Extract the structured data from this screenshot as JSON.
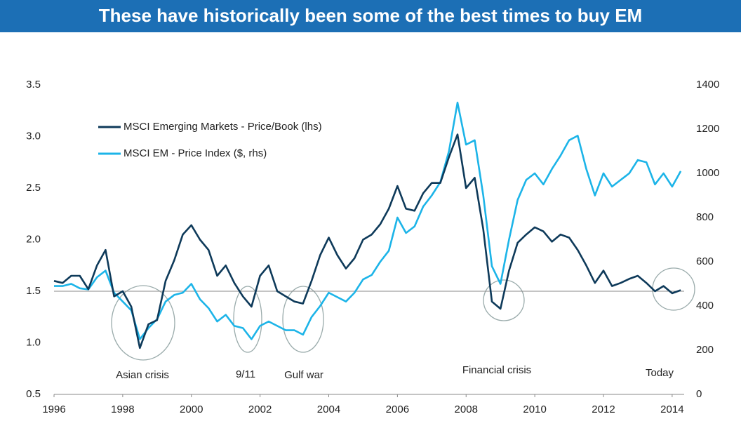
{
  "chart_data": {
    "type": "line",
    "title": "These have historically been some of the best times to buy EM",
    "x": [
      1996,
      1996.25,
      1996.5,
      1996.75,
      1997,
      1997.25,
      1997.5,
      1997.75,
      1998,
      1998.25,
      1998.5,
      1998.75,
      1999,
      1999.25,
      1999.5,
      1999.75,
      2000,
      2000.25,
      2000.5,
      2000.75,
      2001,
      2001.25,
      2001.5,
      2001.75,
      2002,
      2002.25,
      2002.5,
      2002.75,
      2003,
      2003.25,
      2003.5,
      2003.75,
      2004,
      2004.25,
      2004.5,
      2004.75,
      2005,
      2005.25,
      2005.5,
      2005.75,
      2006,
      2006.25,
      2006.5,
      2006.75,
      2007,
      2007.25,
      2007.5,
      2007.75,
      2008,
      2008.25,
      2008.5,
      2008.75,
      2009,
      2009.25,
      2009.5,
      2009.75,
      2010,
      2010.25,
      2010.5,
      2010.75,
      2011,
      2011.25,
      2011.5,
      2011.75,
      2012,
      2012.25,
      2012.5,
      2012.75,
      2013,
      2013.25,
      2013.5,
      2013.75,
      2014,
      2014.25
    ],
    "series": [
      {
        "name": "MSCI Emerging Markets - Price/Book (lhs)",
        "color": "#0e3a5a",
        "axis": "y",
        "values": [
          1.6,
          1.58,
          1.65,
          1.65,
          1.52,
          1.75,
          1.9,
          1.45,
          1.5,
          1.35,
          0.95,
          1.18,
          1.22,
          1.6,
          1.8,
          2.05,
          2.14,
          2.0,
          1.9,
          1.65,
          1.75,
          1.58,
          1.45,
          1.35,
          1.65,
          1.75,
          1.5,
          1.45,
          1.4,
          1.38,
          1.6,
          1.85,
          2.02,
          1.85,
          1.72,
          1.82,
          2.0,
          2.05,
          2.15,
          2.3,
          2.52,
          2.3,
          2.28,
          2.45,
          2.55,
          2.55,
          2.8,
          3.02,
          2.5,
          2.6,
          2.1,
          1.4,
          1.33,
          1.7,
          1.97,
          2.05,
          2.12,
          2.08,
          1.98,
          2.05,
          2.02,
          1.9,
          1.75,
          1.58,
          1.7,
          1.55,
          1.58,
          1.62,
          1.65,
          1.58,
          1.5,
          1.55,
          1.48,
          1.51
        ]
      },
      {
        "name": "MSCI EM - Price Index ($, rhs)",
        "color": "#1cb4e8",
        "axis": "y2",
        "values": [
          490,
          490,
          500,
          480,
          475,
          530,
          560,
          460,
          420,
          380,
          250,
          300,
          340,
          420,
          450,
          460,
          500,
          430,
          390,
          330,
          360,
          310,
          300,
          250,
          310,
          330,
          310,
          290,
          290,
          270,
          350,
          400,
          460,
          440,
          420,
          460,
          520,
          540,
          600,
          650,
          800,
          730,
          760,
          850,
          900,
          960,
          1100,
          1320,
          1130,
          1150,
          900,
          580,
          500,
          700,
          880,
          970,
          1000,
          950,
          1020,
          1080,
          1150,
          1170,
          1020,
          900,
          1000,
          940,
          970,
          1000,
          1060,
          1050,
          950,
          1000,
          940,
          1010
        ]
      }
    ],
    "xlim": [
      1996,
      2014.35
    ],
    "xticks": [
      1996,
      1998,
      2000,
      2002,
      2004,
      2006,
      2008,
      2010,
      2012,
      2014
    ],
    "ylim": [
      0.5,
      3.5
    ],
    "yticks": [
      0.5,
      {
        "value": 1,
        "label": "1.0"
      },
      1.5,
      {
        "value": 2,
        "label": "2.0"
      },
      2.5,
      {
        "value": 3,
        "label": "3.0"
      },
      3.5
    ],
    "y2lim": [
      0,
      1400
    ],
    "y2ticks": [
      0,
      200,
      400,
      600,
      800,
      1000,
      1200,
      1400
    ],
    "reference_line": 1.5,
    "annotations": [
      "Asian crisis",
      "9/11",
      "Gulf war",
      "Financial crisis",
      "Today"
    ],
    "legend": "upper left"
  }
}
